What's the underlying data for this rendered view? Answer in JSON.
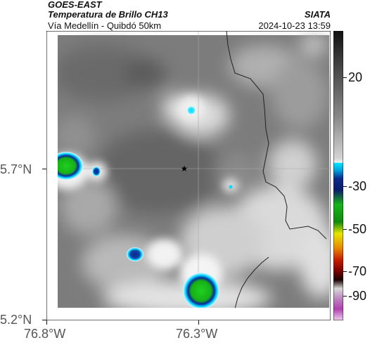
{
  "header": {
    "satellite": "GOES-EAST",
    "product": "Temperatura de Brillo CH13",
    "route": "Vía Medellín - Quibdó 50km",
    "org": "SIATA",
    "datetime": "2024-10-23 13:59"
  },
  "map": {
    "x_ticks": [
      "76.8°W",
      "76.3°W"
    ],
    "y_ticks": [
      "5.7°N",
      "5.2°N"
    ],
    "marker": "star-icon",
    "gridlines": true
  },
  "colorbar": {
    "ticks": [
      "20",
      "-30",
      "-50",
      "-70",
      "-90"
    ],
    "colors": {
      "warm_top": "#111111",
      "cold_cyan": "#00e5ff",
      "cold_blue": "#0a2a8a",
      "green": "#18b418",
      "yellow": "#e6e600",
      "red": "#c81e00",
      "magenta": "#b040b0"
    }
  }
}
